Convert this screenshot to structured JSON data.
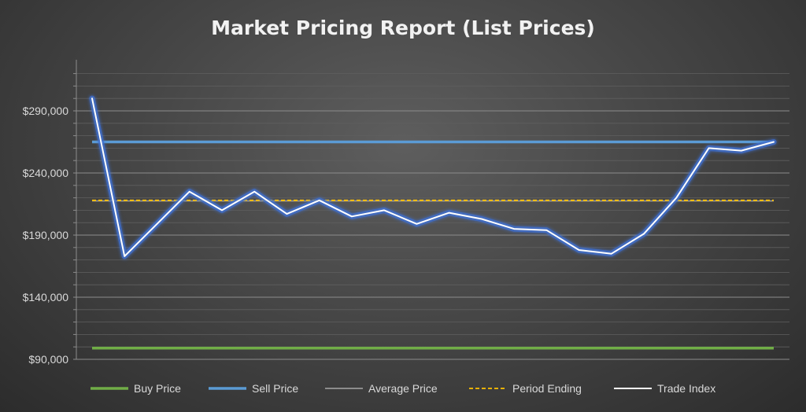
{
  "chart_data": {
    "type": "line",
    "title": "Market Pricing Report (List Prices)",
    "xlabel": "",
    "ylabel": "",
    "ylim": [
      90000,
      300000
    ],
    "y_ticks": [
      {
        "value": 90000,
        "label": "$90,000"
      },
      {
        "value": 140000,
        "label": "$140,000"
      },
      {
        "value": 190000,
        "label": "$190,000"
      },
      {
        "value": 240000,
        "label": "$240,000"
      },
      {
        "value": 290000,
        "label": "$290,000"
      }
    ],
    "grid": true,
    "legend_position": "bottom",
    "x_count": 22,
    "series": [
      {
        "name": "Buy Price",
        "color": "#70ad47",
        "style": "solid-thick",
        "values": [
          99000,
          99000,
          99000,
          99000,
          99000,
          99000,
          99000,
          99000,
          99000,
          99000,
          99000,
          99000,
          99000,
          99000,
          99000,
          99000,
          99000,
          99000,
          99000,
          99000,
          99000,
          99000
        ]
      },
      {
        "name": "Sell Price",
        "color": "#5b9bd5",
        "style": "solid-thick",
        "values": [
          265000,
          265000,
          265000,
          265000,
          265000,
          265000,
          265000,
          265000,
          265000,
          265000,
          265000,
          265000,
          265000,
          265000,
          265000,
          265000,
          265000,
          265000,
          265000,
          265000,
          265000,
          265000
        ]
      },
      {
        "name": "Average Price",
        "color": "#a6a6a6",
        "style": "solid-thin",
        "values": [
          217500,
          217500,
          217500,
          217500,
          217500,
          217500,
          217500,
          217500,
          217500,
          217500,
          217500,
          217500,
          217500,
          217500,
          217500,
          217500,
          217500,
          217500,
          217500,
          217500,
          217500,
          217500
        ]
      },
      {
        "name": "Period Ending",
        "color": "#ffc000",
        "style": "dashed",
        "values": [
          218000,
          218000,
          218000,
          218000,
          218000,
          218000,
          218000,
          218000,
          218000,
          218000,
          218000,
          218000,
          218000,
          218000,
          218000,
          218000,
          218000,
          218000,
          218000,
          218000,
          218000,
          218000
        ]
      },
      {
        "name": "Trade Index",
        "color": "#ffffff",
        "style": "glow",
        "values": [
          300000,
          173000,
          199000,
          225000,
          210000,
          225000,
          207000,
          218000,
          205000,
          210000,
          199000,
          208000,
          203000,
          195000,
          194000,
          178000,
          175000,
          191000,
          220000,
          260000,
          258000,
          265000
        ]
      }
    ]
  }
}
